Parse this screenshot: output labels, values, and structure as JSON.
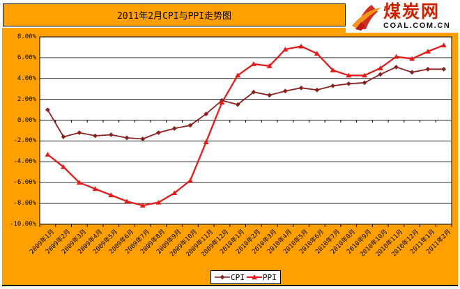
{
  "header": {
    "title": "2011年2月CPI与PPI走势图",
    "logo": {
      "brand": "煤炭网",
      "domain": "COAL.COM.CN"
    }
  },
  "colors": {
    "background_orange": "#FFA000",
    "plot_background": "#FFFFFF",
    "cpi_line": "#8B2020",
    "ppi_line": "#E31B1B",
    "logo_red": "#CC2200",
    "logo_swoosh_orange": "#F79518",
    "axis_black": "#000000"
  },
  "chart_data": {
    "type": "line",
    "title": "2011年2月CPI与PPI走势图",
    "categories": [
      "2009年1月",
      "2009年2月",
      "2009年3月",
      "2009年4月",
      "2009年5月",
      "2009年6月",
      "2009年7月",
      "2009年8月",
      "2009年9月",
      "2009年10月",
      "2009年11月",
      "2009年12月",
      "2010年1月",
      "2010年2月",
      "2010年3月",
      "2010年4月",
      "2010年5月",
      "2010年6月",
      "2010年7月",
      "2010年8月",
      "2010年9月",
      "2010年10月",
      "2010年11月",
      "2010年12月",
      "2011年1月",
      "2011年2月"
    ],
    "series": [
      {
        "name": "CPI",
        "marker": "diamond",
        "color": "#8B2020",
        "values": [
          1.0,
          -1.6,
          -1.2,
          -1.5,
          -1.4,
          -1.7,
          -1.8,
          -1.2,
          -0.8,
          -0.5,
          0.6,
          1.9,
          1.5,
          2.7,
          2.4,
          2.8,
          3.1,
          2.9,
          3.3,
          3.5,
          3.6,
          4.4,
          5.1,
          4.6,
          4.9,
          4.9
        ]
      },
      {
        "name": "PPI",
        "marker": "triangle",
        "color": "#E31B1B",
        "values": [
          -3.3,
          -4.5,
          -6.0,
          -6.6,
          -7.2,
          -7.8,
          -8.2,
          -7.9,
          -7.0,
          -5.8,
          -2.1,
          1.7,
          4.3,
          5.4,
          5.2,
          6.8,
          7.1,
          6.4,
          4.8,
          4.3,
          4.3,
          5.0,
          6.1,
          5.9,
          6.6,
          7.2
        ]
      }
    ],
    "xlabel": "",
    "ylabel": "",
    "ylim": [
      -10,
      8
    ],
    "ytick_step": 2,
    "ytick_labels": [
      "8.00%",
      "6.00%",
      "4.00%",
      "2.00%",
      "0.00%",
      "-2.00%",
      "-4.00%",
      "-6.00%",
      "-8.00%",
      "-10.00%"
    ],
    "grid": true,
    "legend_position": "bottom-center"
  }
}
